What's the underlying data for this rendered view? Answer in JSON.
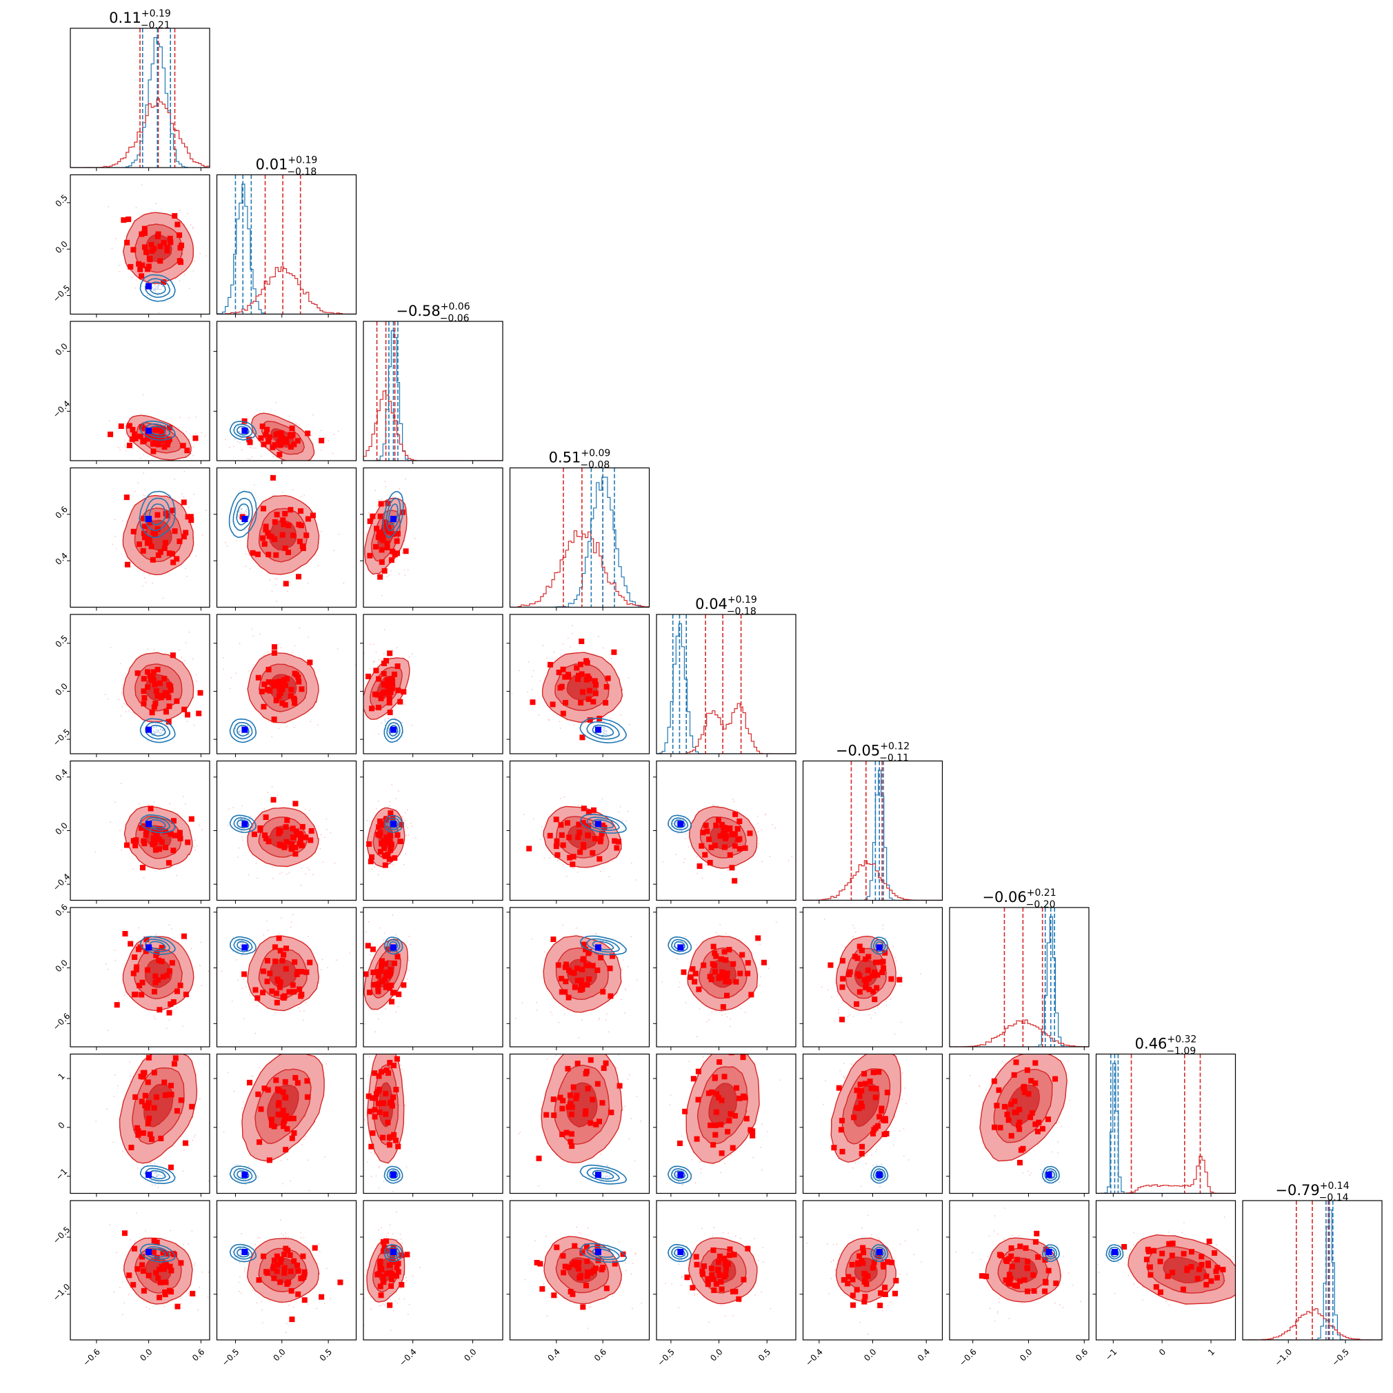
{
  "chart_data": {
    "type": "corner",
    "n_params": 9,
    "series": [
      {
        "name": "",
        "color": "#d62728",
        "role": "posterior_a"
      },
      {
        "name": "",
        "color": "#1f77b4",
        "role": "posterior_b"
      }
    ],
    "marker_colors": {
      "samples": "#ff0000",
      "truth": "#0000ff"
    },
    "contour_fill_colors": [
      "#f2a8a8",
      "#e87a7a",
      "#d63a3a"
    ],
    "titles": [
      {
        "median": "0.11",
        "plus": "+0.19",
        "minus": "−0.21"
      },
      {
        "median": "0.01",
        "plus": "+0.19",
        "minus": "−0.18"
      },
      {
        "median": "−0.58",
        "plus": "+0.06",
        "minus": "−0.06"
      },
      {
        "median": "0.51",
        "plus": "+0.09",
        "minus": "−0.08"
      },
      {
        "median": "0.04",
        "plus": "+0.19",
        "minus": "−0.18"
      },
      {
        "median": "−0.05",
        "plus": "+0.12",
        "minus": "−0.11"
      },
      {
        "median": "−0.06",
        "plus": "+0.21",
        "minus": "−0.20"
      },
      {
        "median": "0.46",
        "plus": "+0.32",
        "minus": "−1.09"
      },
      {
        "median": "−0.79",
        "plus": "+0.14",
        "minus": "−0.14"
      }
    ],
    "params": [
      {
        "range": [
          -0.9,
          0.7
        ],
        "ticks": [
          -0.6,
          0.0,
          0.6
        ],
        "tick_labels": [
          "−0.6",
          "0.0",
          "0.6"
        ],
        "red": {
          "mu": 0.11,
          "sd": 0.2,
          "q": [
            -0.1,
            0.11,
            0.3
          ]
        },
        "blue": {
          "mu": 0.1,
          "sd": 0.1,
          "q": [
            -0.07,
            0.1,
            0.25
          ]
        },
        "truth": 0.0
      },
      {
        "range": [
          -0.7,
          0.8
        ],
        "ticks": [
          -0.5,
          0.0,
          0.5
        ],
        "tick_labels": [
          "−0.5",
          "0.0",
          "0.5"
        ],
        "red": {
          "mu": 0.01,
          "sd": 0.19,
          "q": [
            -0.18,
            0.01,
            0.2
          ]
        },
        "blue": {
          "mu": -0.42,
          "sd": 0.07,
          "q": [
            -0.5,
            -0.42,
            -0.33
          ]
        },
        "truth": -0.4
      },
      {
        "range": [
          -0.73,
          0.2
        ],
        "ticks": [
          -0.4,
          0.0
        ],
        "tick_labels": [
          "−0.4",
          "0.0"
        ],
        "red": {
          "mu": -0.58,
          "sd": 0.06,
          "q": [
            -0.64,
            -0.58,
            -0.52
          ]
        },
        "blue": {
          "mu": -0.53,
          "sd": 0.03,
          "q": [
            -0.56,
            -0.53,
            -0.5
          ]
        },
        "truth": -0.53
      },
      {
        "range": [
          0.2,
          0.8
        ],
        "ticks": [
          0.4,
          0.6
        ],
        "tick_labels": [
          "0.4",
          "0.6"
        ],
        "red": {
          "mu": 0.51,
          "sd": 0.085,
          "q": [
            0.43,
            0.51,
            0.6
          ]
        },
        "blue": {
          "mu": 0.6,
          "sd": 0.05,
          "q": [
            0.55,
            0.6,
            0.65
          ]
        },
        "truth": 0.58
      },
      {
        "range": [
          -0.65,
          0.8
        ],
        "ticks": [
          -0.5,
          0.0,
          0.5
        ],
        "tick_labels": [
          "−0.5",
          "0.0",
          "0.5"
        ],
        "red": {
          "mu": 0.04,
          "sd": 0.18,
          "q": [
            -0.14,
            0.04,
            0.23
          ]
        },
        "blue": {
          "mu": -0.41,
          "sd": 0.06,
          "q": [
            -0.48,
            -0.41,
            -0.34
          ]
        },
        "truth": -0.4
      },
      {
        "range": [
          -0.52,
          0.52
        ],
        "ticks": [
          -0.4,
          0.0,
          0.4
        ],
        "tick_labels": [
          "−0.4",
          "0.0",
          "0.4"
        ],
        "red": {
          "mu": -0.05,
          "sd": 0.11,
          "q": [
            -0.16,
            -0.05,
            0.07
          ]
        },
        "blue": {
          "mu": 0.05,
          "sd": 0.03,
          "q": [
            0.02,
            0.05,
            0.08
          ]
        },
        "truth": 0.05
      },
      {
        "range": [
          -0.85,
          0.65
        ],
        "ticks": [
          -0.6,
          0.0,
          0.6
        ],
        "tick_labels": [
          "−0.6",
          "0.0",
          "0.6"
        ],
        "red": {
          "mu": -0.06,
          "sd": 0.2,
          "q": [
            -0.26,
            -0.06,
            0.15
          ]
        },
        "blue": {
          "mu": 0.24,
          "sd": 0.04,
          "q": [
            0.18,
            0.24,
            0.28
          ]
        },
        "truth": 0.22
      },
      {
        "range": [
          -1.35,
          1.5
        ],
        "ticks": [
          -1.0,
          0.0,
          1.0
        ],
        "tick_labels": [
          "−1",
          "0",
          "1"
        ],
        "red": {
          "mu": 0.46,
          "sd": 0.6,
          "q": [
            -0.63,
            0.46,
            0.78
          ]
        },
        "blue": {
          "mu": -0.97,
          "sd": 0.05,
          "q": [
            -1.05,
            -0.97,
            -0.9
          ]
        },
        "truth": -0.97
      },
      {
        "range": [
          -1.4,
          -0.18
        ],
        "ticks": [
          -1.0,
          -0.5
        ],
        "tick_labels": [
          "−1.0",
          "−0.5"
        ],
        "red": {
          "mu": -0.79,
          "sd": 0.14,
          "q": [
            -0.93,
            -0.79,
            -0.65
          ]
        },
        "blue": {
          "mu": -0.64,
          "sd": 0.03,
          "q": [
            -0.67,
            -0.64,
            -0.61
          ]
        },
        "truth": -0.63
      }
    ]
  }
}
